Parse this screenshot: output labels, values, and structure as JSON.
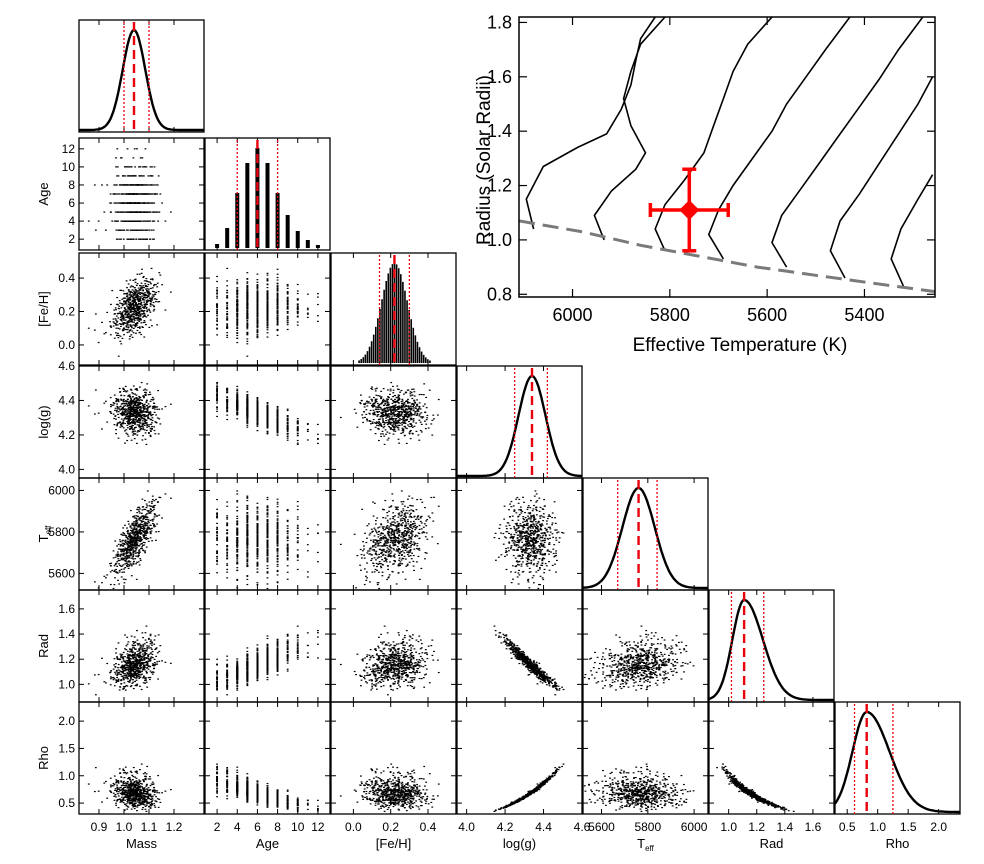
{
  "colors": {
    "axis": "#000000",
    "median": "#e8000b",
    "interval": "#e8000b",
    "track": "#000000",
    "zams": "#7a7a7a",
    "star": "#ff0000"
  },
  "corner": {
    "params": [
      {
        "key": "mass",
        "label": "Mass",
        "label_sub": "",
        "range": [
          0.82,
          1.32
        ],
        "ticks": [
          0.9,
          1.0,
          1.1,
          1.2
        ],
        "tick_labels": [
          "0.9",
          "1.0",
          "1.1",
          "1.2"
        ],
        "median": 1.04,
        "lo": 1.0,
        "hi": 1.1,
        "hist_kind": "step",
        "sigma": 0.045
      },
      {
        "key": "age",
        "label": "Age",
        "label_sub": "",
        "range": [
          0.8,
          13.2
        ],
        "ticks": [
          2,
          4,
          6,
          8,
          10,
          12
        ],
        "tick_labels": [
          "2",
          "4",
          "6",
          "8",
          "10",
          "12"
        ],
        "median": 6,
        "lo": 4,
        "hi": 8,
        "hist_kind": "bars",
        "bar_x": [
          2,
          3,
          4,
          5,
          6,
          7,
          8,
          9,
          10,
          11,
          12
        ],
        "bar_h": [
          0.04,
          0.2,
          0.55,
          0.85,
          1.0,
          0.85,
          0.55,
          0.33,
          0.17,
          0.08,
          0.03
        ]
      },
      {
        "key": "feh",
        "label": "[Fe/H]",
        "label_sub": "",
        "range": [
          -0.12,
          0.55
        ],
        "ticks": [
          0.0,
          0.2,
          0.4
        ],
        "tick_labels": [
          "0.0",
          "0.2",
          "0.4"
        ],
        "median": 0.22,
        "lo": 0.14,
        "hi": 0.3,
        "hist_kind": "bars_fine",
        "sigma": 0.07
      },
      {
        "key": "logg",
        "label": "log(g)",
        "label_sub": "",
        "range": [
          3.95,
          4.6
        ],
        "ticks": [
          4.0,
          4.2,
          4.4,
          4.6
        ],
        "tick_labels": [
          "4.0",
          "4.2",
          "4.4",
          "4.6"
        ],
        "median": 4.34,
        "lo": 4.25,
        "hi": 4.42,
        "hist_kind": "step",
        "sigma": 0.07
      },
      {
        "key": "teff",
        "label": "T",
        "label_sub": "eff",
        "range": [
          5520,
          6060
        ],
        "ticks": [
          5600,
          5800,
          6000
        ],
        "tick_labels": [
          "5600",
          "5800",
          "6000"
        ],
        "median": 5760,
        "lo": 5670,
        "hi": 5840,
        "hist_kind": "step",
        "sigma": 70
      },
      {
        "key": "rad",
        "label": "Rad",
        "label_sub": "",
        "range": [
          0.86,
          1.75
        ],
        "ticks": [
          1.0,
          1.2,
          1.4,
          1.6
        ],
        "tick_labels": [
          "1.0",
          "1.2",
          "1.4",
          "1.6"
        ],
        "median": 1.11,
        "lo": 1.02,
        "hi": 1.25,
        "hist_kind": "step",
        "sigma": 0.1
      },
      {
        "key": "rho",
        "label": "Rho",
        "label_sub": "",
        "range": [
          0.3,
          2.35
        ],
        "ticks": [
          0.5,
          1.0,
          1.5,
          2.0
        ],
        "tick_labels": [
          "0.5",
          "1.0",
          "1.5",
          "2.0"
        ],
        "median": 0.82,
        "lo": 0.62,
        "hi": 1.25,
        "hist_kind": "step",
        "sigma": 0.28
      }
    ]
  },
  "chart_data": {
    "type": "scatter",
    "title": "",
    "xlabel": "Effective Temperature (K)",
    "ylabel": "Radius (Solar Radii)",
    "xlim": [
      6110,
      5255
    ],
    "ylim": [
      0.79,
      1.82
    ],
    "xticks": [
      6000,
      5800,
      5600,
      5400
    ],
    "yticks": [
      0.8,
      1.0,
      1.2,
      1.4,
      1.6,
      1.8
    ],
    "xtick_labels": [
      "6000",
      "5800",
      "5600",
      "5400"
    ],
    "ytick_labels": [
      "0.8",
      "1.0",
      "1.2",
      "1.4",
      "1.6",
      "1.8"
    ],
    "star": {
      "teff": 5760,
      "radius": 1.11,
      "teff_err": 80,
      "radius_err": 0.15
    },
    "zams": {
      "teff": [
        6110,
        5980,
        5860,
        5740,
        5620,
        5500,
        5380,
        5255
      ],
      "radius": [
        1.07,
        1.03,
        0.98,
        0.94,
        0.9,
        0.87,
        0.84,
        0.81
      ]
    },
    "tracks": [
      {
        "teff": [
          6080,
          6095,
          6060,
          5990,
          5930,
          5900,
          5880,
          5870,
          5860,
          5830
        ],
        "radius": [
          1.04,
          1.15,
          1.27,
          1.34,
          1.39,
          1.48,
          1.57,
          1.66,
          1.74,
          1.82
        ]
      },
      {
        "teff": [
          5935,
          5955,
          5920,
          5870,
          5850,
          5880,
          5895,
          5880,
          5860,
          5810
        ],
        "radius": [
          1.0,
          1.09,
          1.18,
          1.26,
          1.32,
          1.42,
          1.52,
          1.62,
          1.72,
          1.82
        ]
      },
      {
        "teff": [
          5810,
          5830,
          5810,
          5770,
          5730,
          5710,
          5690,
          5670,
          5640,
          5590
        ],
        "radius": [
          0.96,
          1.04,
          1.13,
          1.22,
          1.32,
          1.42,
          1.52,
          1.62,
          1.72,
          1.82
        ]
      },
      {
        "teff": [
          5690,
          5720,
          5700,
          5670,
          5630,
          5590,
          5560,
          5520,
          5480,
          5430
        ],
        "radius": [
          0.93,
          1.02,
          1.11,
          1.2,
          1.3,
          1.4,
          1.5,
          1.6,
          1.7,
          1.82
        ]
      },
      {
        "teff": [
          5560,
          5590,
          5570,
          5530,
          5490,
          5450,
          5410,
          5370,
          5330,
          5280
        ],
        "radius": [
          0.9,
          0.99,
          1.09,
          1.19,
          1.29,
          1.39,
          1.49,
          1.59,
          1.7,
          1.82
        ]
      },
      {
        "teff": [
          5440,
          5470,
          5450,
          5410,
          5370,
          5330,
          5290,
          5260
        ],
        "radius": [
          0.86,
          0.96,
          1.07,
          1.17,
          1.28,
          1.39,
          1.5,
          1.6
        ]
      },
      {
        "teff": [
          5320,
          5345,
          5325,
          5290,
          5260
        ],
        "radius": [
          0.83,
          0.93,
          1.04,
          1.15,
          1.24
        ]
      }
    ]
  }
}
